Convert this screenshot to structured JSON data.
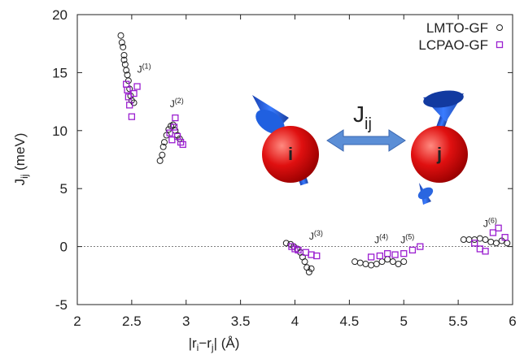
{
  "chart_data": {
    "type": "scatter",
    "xlabel": [
      "|r",
      "i",
      "−r",
      "j",
      "| (Å)"
    ],
    "ylabel": [
      "J",
      "ij",
      " (meV)"
    ],
    "xlim": [
      2,
      6
    ],
    "ylim": [
      -5,
      20
    ],
    "xticks": [
      2,
      2.5,
      3,
      3.5,
      4,
      4.5,
      5,
      5.5,
      6
    ],
    "yticks": [
      -5,
      0,
      5,
      10,
      15,
      20
    ],
    "legend": "upper right",
    "series": [
      {
        "name": "LMTO-GF",
        "color": "#222222",
        "marker": "circle",
        "x": [
          2.4,
          2.41,
          2.42,
          2.43,
          2.43,
          2.44,
          2.45,
          2.46,
          2.47,
          2.48,
          2.49,
          2.5,
          2.52,
          2.76,
          2.78,
          2.79,
          2.8,
          2.82,
          2.84,
          2.86,
          2.88,
          2.9,
          2.92,
          2.94,
          3.92,
          3.96,
          3.99,
          4.02,
          4.05,
          4.07,
          4.09,
          4.11,
          4.13,
          4.15,
          4.55,
          4.6,
          4.65,
          4.7,
          4.75,
          4.8,
          4.85,
          4.9,
          4.95,
          5.0,
          5.55,
          5.6,
          5.65,
          5.7,
          5.75,
          5.8,
          5.85,
          5.9,
          5.95
        ],
        "y": [
          18.2,
          17.6,
          17.2,
          16.5,
          16.1,
          15.7,
          15.2,
          14.8,
          14.3,
          13.6,
          13.0,
          12.6,
          12.4,
          7.4,
          7.9,
          8.6,
          9.0,
          9.6,
          10.1,
          10.4,
          10.5,
          10.0,
          9.6,
          9.3,
          0.3,
          0.2,
          0.0,
          -0.2,
          -0.5,
          -0.9,
          -1.3,
          -1.8,
          -2.2,
          -1.9,
          -1.3,
          -1.4,
          -1.5,
          -1.6,
          -1.5,
          -1.3,
          -1.1,
          -1.3,
          -1.5,
          -1.3,
          0.6,
          0.6,
          0.6,
          0.7,
          0.6,
          0.4,
          0.3,
          0.5,
          0.3
        ]
      },
      {
        "name": "LCPAO-GF",
        "color": "#9b1fd0",
        "marker": "square",
        "x": [
          2.45,
          2.46,
          2.47,
          2.48,
          2.5,
          2.52,
          2.55,
          2.85,
          2.87,
          2.89,
          2.9,
          2.92,
          2.95,
          2.97,
          3.97,
          4.0,
          4.03,
          4.1,
          4.15,
          4.2,
          4.7,
          4.78,
          4.85,
          4.92,
          5.0,
          5.08,
          5.15,
          5.65,
          5.7,
          5.75,
          5.82,
          5.87,
          5.93
        ],
        "y": [
          14.0,
          13.5,
          12.9,
          12.2,
          11.2,
          13.2,
          13.8,
          9.8,
          9.2,
          10.3,
          11.1,
          9.5,
          9.0,
          8.8,
          0.0,
          -0.2,
          -0.3,
          -0.5,
          -0.7,
          -0.8,
          -0.9,
          -0.8,
          -0.6,
          -0.7,
          -0.6,
          -0.3,
          0.0,
          0.3,
          -0.2,
          -0.4,
          1.2,
          1.6,
          0.8
        ]
      }
    ],
    "annotations": [
      {
        "text": "J",
        "sup": "(1)",
        "x": 2.55,
        "y": 15
      },
      {
        "text": "J",
        "sup": "(2)",
        "x": 2.85,
        "y": 12
      },
      {
        "text": "J",
        "sup": "(3)",
        "x": 4.13,
        "y": 0.6
      },
      {
        "text": "J",
        "sup": "(4)",
        "x": 4.73,
        "y": 0.3
      },
      {
        "text": "J",
        "sup": "(5)",
        "x": 4.97,
        "y": 0.3
      },
      {
        "text": "J",
        "sup": "(6)",
        "x": 5.73,
        "y": 1.7
      }
    ],
    "illustration": {
      "left": "i",
      "right": "j",
      "coupling": [
        "J",
        "ij"
      ]
    }
  }
}
